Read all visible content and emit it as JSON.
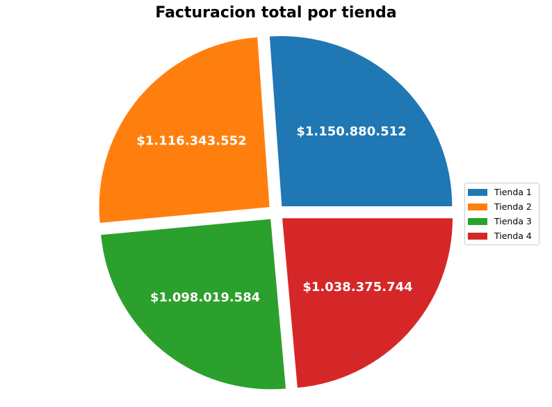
{
  "chart_data": {
    "type": "pie",
    "title": "Facturacion total por tienda",
    "categories": [
      "Tienda 1",
      "Tienda 2",
      "Tienda 3",
      "Tienda 4"
    ],
    "values": [
      1150880512,
      1116343552,
      1098019584,
      1038375744
    ],
    "data_labels": [
      "$1.150.880.512",
      "$1.116.343.552",
      "$1.098.019.584",
      "$1.038.375.744"
    ],
    "colors": [
      "#1f77b4",
      "#ff7f0e",
      "#2ca02c",
      "#d62728"
    ],
    "legend": {
      "placement": "right",
      "items": [
        {
          "label": "Tienda 1",
          "color": "#1f77b4"
        },
        {
          "label": "Tienda 2",
          "color": "#ff7f0e"
        },
        {
          "label": "Tienda 3",
          "color": "#2ca02c"
        },
        {
          "label": "Tienda 4",
          "color": "#d62728"
        }
      ]
    }
  }
}
